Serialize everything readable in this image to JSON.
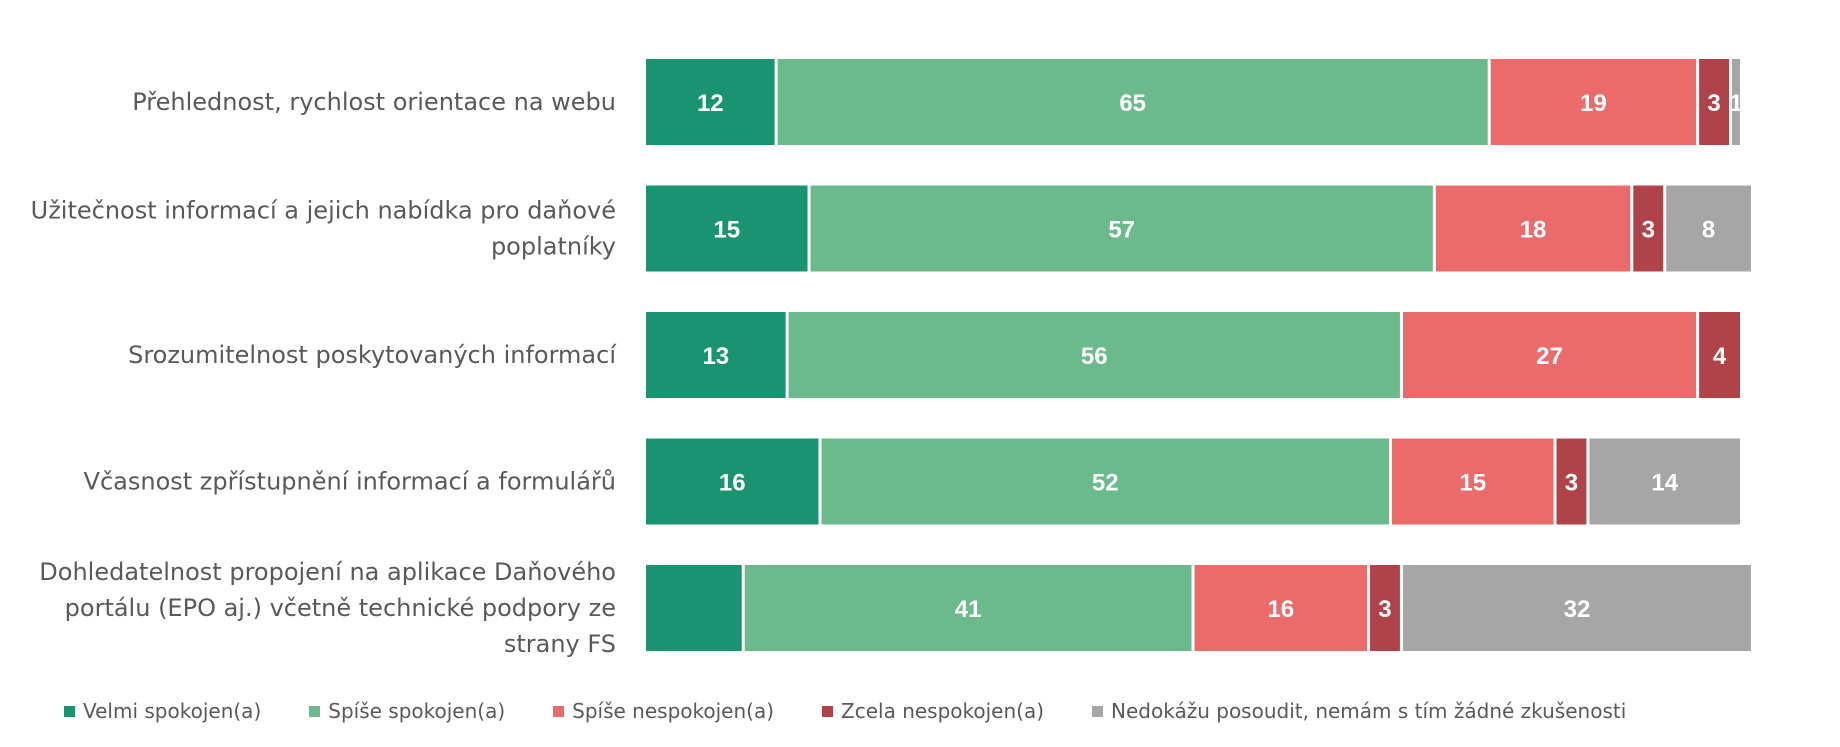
{
  "chart_data": {
    "type": "bar",
    "orientation": "horizontal",
    "stacked": true,
    "categories": [
      "Přehlednost, rychlost orientace na webu",
      "Užitečnost informací a jejich nabídka pro daňové poplatníky",
      "Srozumitelnost poskytovaných informací",
      "Včasnost zpřístupnění informací a formulářů",
      "Dohledatelnost propojení na aplikace Daňového portálu (EPO aj.) včetně technické podpory ze strany FS"
    ],
    "category_lines": [
      [
        "Přehlednost, rychlost orientace na webu"
      ],
      [
        "Užitečnost informací a jejich nabídka pro daňové",
        "poplatníky"
      ],
      [
        "Srozumitelnost poskytovaných informací"
      ],
      [
        "Včasnost zpřístupnění informací a formulářů"
      ],
      [
        "Dohledatelnost propojení na aplikace Daňového",
        "portálu (EPO aj.) včetně technické podpory ze",
        "strany FS"
      ]
    ],
    "series": [
      {
        "name": "Velmi spokojen(a)",
        "color": "#1a9370",
        "values": [
          12,
          15,
          13,
          16,
          9
        ]
      },
      {
        "name": "Spíše spokojen(a)",
        "color": "#6aba8b",
        "values": [
          65,
          57,
          56,
          52,
          41
        ]
      },
      {
        "name": "Spíše nespokojen(a)",
        "color": "#eb6b6b",
        "values": [
          19,
          18,
          27,
          15,
          16
        ]
      },
      {
        "name": "Zcela nespokojen(a)",
        "color": "#b0434a",
        "values": [
          3,
          3,
          4,
          3,
          3
        ]
      },
      {
        "name": "Nedokážu posoudit, nemám s tím žádné zkušenosti",
        "color": "#a6a6a6",
        "values": [
          1,
          8,
          0,
          14,
          32
        ]
      }
    ],
    "hidden_value_labels": [
      [
        4,
        0
      ]
    ],
    "xlim": [
      0,
      100
    ],
    "legend_position": "bottom",
    "grid": false
  }
}
